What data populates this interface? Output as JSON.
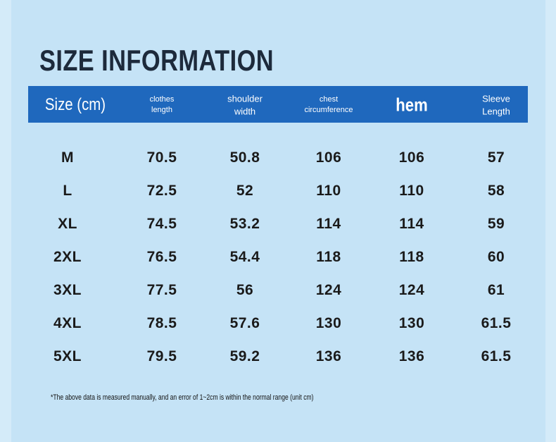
{
  "title": "SIZE INFORMATION",
  "table": {
    "header": [
      "Size (cm)",
      "clothes length",
      "shoulder width",
      "chest circumference",
      "hem",
      "Sleeve Length"
    ],
    "rows": [
      [
        "M",
        "70.5",
        "50.8",
        "106",
        "106",
        "57"
      ],
      [
        "L",
        "72.5",
        "52",
        "110",
        "110",
        "58"
      ],
      [
        "XL",
        "74.5",
        "53.2",
        "114",
        "114",
        "59"
      ],
      [
        "2XL",
        "76.5",
        "54.4",
        "118",
        "118",
        "60"
      ],
      [
        "3XL",
        "77.5",
        "56",
        "124",
        "124",
        "61"
      ],
      [
        "4XL",
        "78.5",
        "57.6",
        "130",
        "130",
        "61.5"
      ],
      [
        "5XL",
        "79.5",
        "59.2",
        "136",
        "136",
        "61.5"
      ]
    ]
  },
  "note": "*The above data is measured manually, and an error of 1~2cm is within the normal range (unit cm)"
}
